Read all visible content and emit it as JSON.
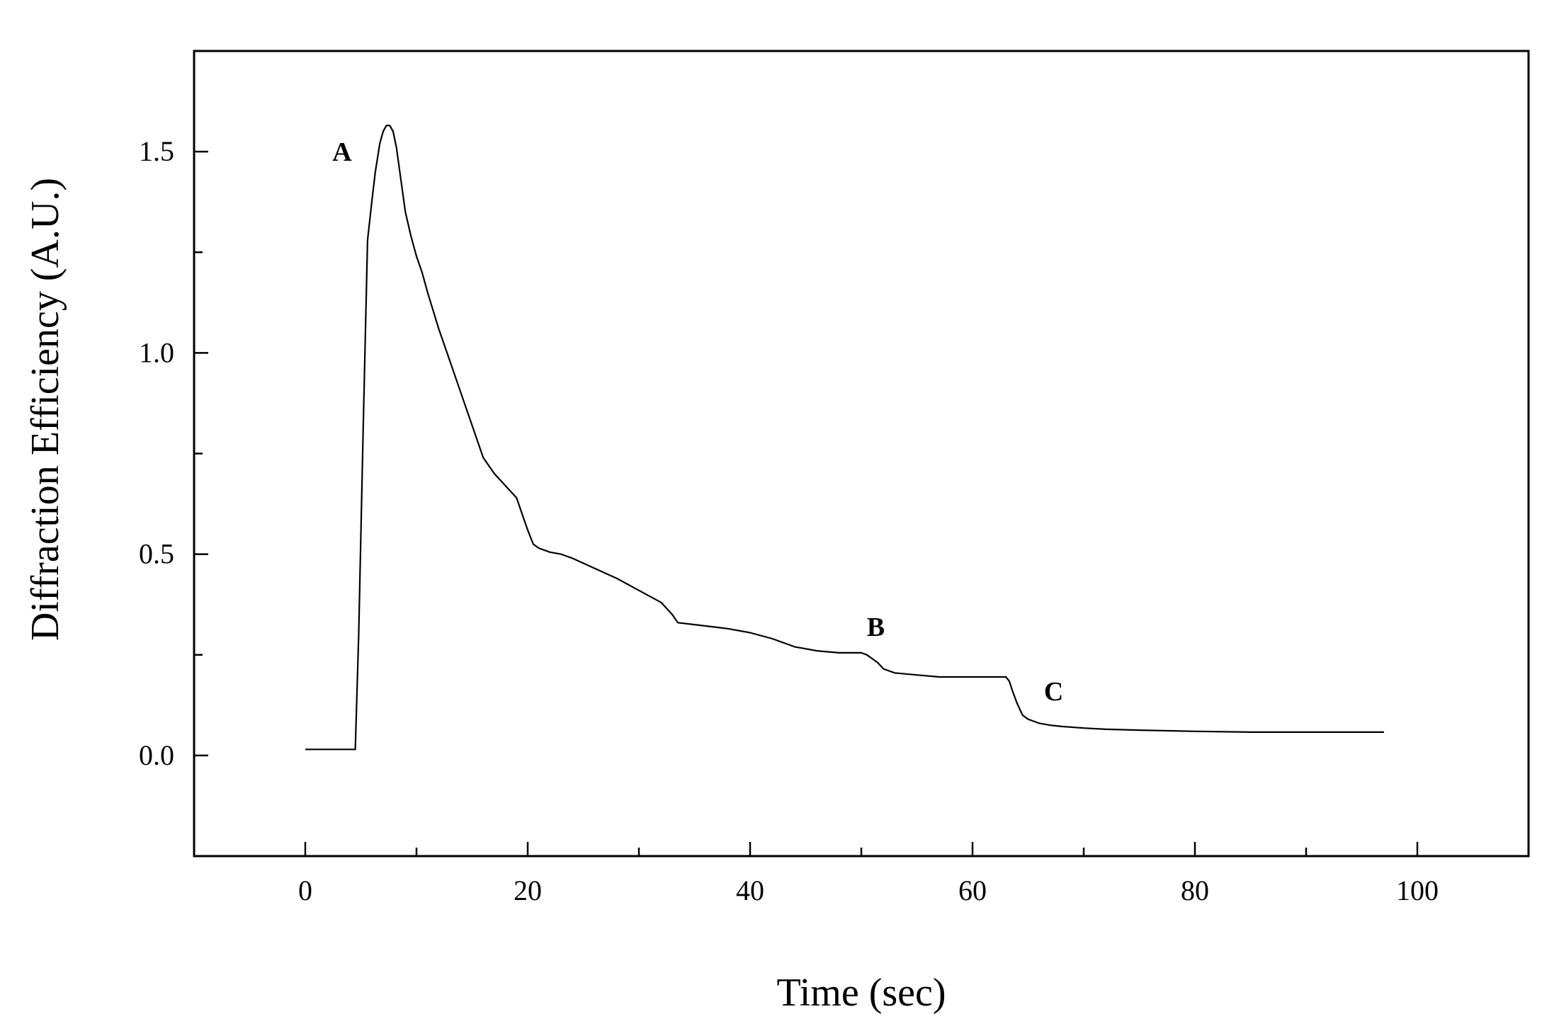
{
  "chart_data": {
    "type": "line",
    "title": "",
    "xlabel": "Time (sec)",
    "ylabel": "Diffraction Efficiency (A.U.)",
    "xlim": [
      -10,
      110
    ],
    "ylim": [
      -0.25,
      1.75
    ],
    "xticks": [
      0,
      20,
      40,
      60,
      80,
      100
    ],
    "xtick_labels": [
      "0",
      "20",
      "40",
      "60",
      "80",
      "100"
    ],
    "yticks": [
      0.0,
      0.5,
      1.0,
      1.5
    ],
    "ytick_labels": [
      "0.0",
      "0.5",
      "1.0",
      "1.5"
    ],
    "grid": false,
    "legend": "none",
    "series": [
      {
        "x": [
          0,
          2,
          4,
          4.5,
          4.8,
          5.2,
          5.6,
          6.0,
          6.3,
          6.7,
          7.0,
          7.3,
          7.6,
          7.9,
          8.2,
          8.6,
          9.0,
          9.5,
          10.0,
          10.5,
          11.0,
          12.0,
          13.0,
          14.0,
          15.0,
          16.0,
          17.0,
          18.0,
          19.0,
          19.5,
          20.0,
          20.5,
          21.0,
          22.0,
          23.0,
          24.0,
          26.0,
          28.0,
          30.0,
          32.0,
          33.0,
          33.5,
          35.0,
          38.0,
          40.0,
          42.0,
          44.0,
          46.0,
          48.0,
          50.0,
          50.5,
          51.0,
          51.5,
          52.0,
          52.5,
          53.0,
          55.0,
          57.0,
          60.0,
          62.0,
          63.0,
          63.3,
          63.6,
          64.0,
          64.5,
          65.0,
          66.0,
          67.0,
          68.0,
          70.0,
          72.0,
          75.0,
          80.0,
          85.0,
          90.0,
          95.0,
          97.0
        ],
        "y": [
          0.015,
          0.015,
          0.015,
          0.015,
          0.3,
          0.8,
          1.28,
          1.38,
          1.45,
          1.52,
          1.55,
          1.565,
          1.565,
          1.55,
          1.51,
          1.43,
          1.35,
          1.29,
          1.24,
          1.2,
          1.15,
          1.06,
          0.98,
          0.9,
          0.82,
          0.74,
          0.7,
          0.67,
          0.64,
          0.6,
          0.56,
          0.525,
          0.515,
          0.505,
          0.5,
          0.49,
          0.465,
          0.44,
          0.41,
          0.38,
          0.35,
          0.33,
          0.325,
          0.315,
          0.305,
          0.29,
          0.27,
          0.26,
          0.255,
          0.255,
          0.25,
          0.24,
          0.23,
          0.215,
          0.21,
          0.205,
          0.2,
          0.195,
          0.195,
          0.195,
          0.195,
          0.185,
          0.16,
          0.13,
          0.1,
          0.09,
          0.08,
          0.075,
          0.072,
          0.068,
          0.065,
          0.063,
          0.06,
          0.058,
          0.058,
          0.058,
          0.058
        ]
      }
    ],
    "annotations": [
      {
        "text": "A",
        "x": 3.3,
        "y": 1.5
      },
      {
        "text": "B",
        "x": 51.3,
        "y": 0.32
      },
      {
        "text": "C",
        "x": 67.3,
        "y": 0.16
      }
    ]
  }
}
